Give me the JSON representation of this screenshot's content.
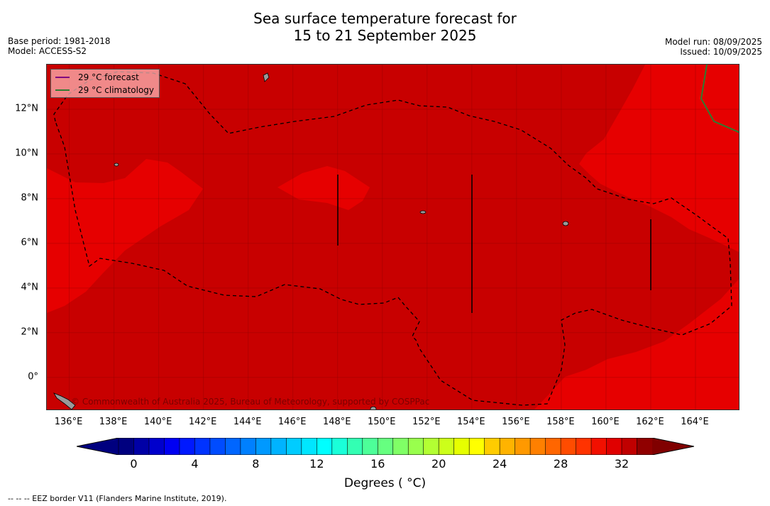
{
  "title": {
    "line1": "Sea surface temperature forecast for",
    "line2": "15 to 21 September 2025"
  },
  "meta": {
    "base_period": "Base period: 1981-2018",
    "model": "Model: ACCESS-S2",
    "model_run": "Model run: 08/09/2025",
    "issued": "Issued: 10/09/2025"
  },
  "legend": {
    "forecast_label": "29 °C  forecast",
    "forecast_color": "#800080",
    "climatology_label": "29 °C  climatology",
    "climatology_color": "#2e7d32"
  },
  "copyright": "© Commonwealth of Australia 2025, Bureau of Meteorology, supported by COSPPac",
  "map": {
    "lon_range": [
      135,
      166
    ],
    "lat_range": [
      -1.5,
      14
    ],
    "x_ticks": [
      {
        "value": 136,
        "label": "136°E"
      },
      {
        "value": 138,
        "label": "138°E"
      },
      {
        "value": 140,
        "label": "140°E"
      },
      {
        "value": 142,
        "label": "142°E"
      },
      {
        "value": 144,
        "label": "144°E"
      },
      {
        "value": 146,
        "label": "146°E"
      },
      {
        "value": 148,
        "label": "148°E"
      },
      {
        "value": 150,
        "label": "150°E"
      },
      {
        "value": 152,
        "label": "152°E"
      },
      {
        "value": 154,
        "label": "154°E"
      },
      {
        "value": 156,
        "label": "156°E"
      },
      {
        "value": 158,
        "label": "158°E"
      },
      {
        "value": 160,
        "label": "160°E"
      },
      {
        "value": 162,
        "label": "162°E"
      },
      {
        "value": 164,
        "label": "164°E"
      }
    ],
    "y_ticks": [
      {
        "value": 0,
        "label": "0°"
      },
      {
        "value": 2,
        "label": "2°N"
      },
      {
        "value": 4,
        "label": "4°N"
      },
      {
        "value": 6,
        "label": "6°N"
      },
      {
        "value": 8,
        "label": "8°N"
      },
      {
        "value": 10,
        "label": "10°N"
      },
      {
        "value": 12,
        "label": "12°N"
      }
    ],
    "colors": {
      "warmest": "#c80000",
      "warm": "#e60000",
      "land": "#999999"
    }
  },
  "colorbar": {
    "title": "Degrees ( °C)",
    "min": 0,
    "max": 32,
    "step": 1,
    "labels": [
      {
        "value": 0,
        "label": "0"
      },
      {
        "value": 4,
        "label": "4"
      },
      {
        "value": 8,
        "label": "8"
      },
      {
        "value": 12,
        "label": "12"
      },
      {
        "value": 16,
        "label": "16"
      },
      {
        "value": 20,
        "label": "20"
      },
      {
        "value": 24,
        "label": "24"
      },
      {
        "value": 28,
        "label": "28"
      },
      {
        "value": 32,
        "label": "32"
      }
    ],
    "colors": [
      "#00007f",
      "#0000a6",
      "#0000cc",
      "#0000f2",
      "#0019ff",
      "#0033ff",
      "#004cff",
      "#0066ff",
      "#0080ff",
      "#0099ff",
      "#00b3ff",
      "#00ccff",
      "#00e6ff",
      "#00ffff",
      "#1affd9",
      "#33ffb3",
      "#4dff99",
      "#66ff80",
      "#80ff66",
      "#99ff4d",
      "#b3ff33",
      "#ccff1a",
      "#e6ff00",
      "#ffff00",
      "#ffcc00",
      "#ffb300",
      "#ff9900",
      "#ff8000",
      "#ff6600",
      "#ff4c00",
      "#ff3300",
      "#f21000",
      "#e00000",
      "#c00000",
      "#900000"
    ],
    "under_color": "#00007f",
    "over_color": "#800000"
  },
  "footer": "--  --  -- EEZ border V11 (Flanders Marine Institute, 2019)."
}
